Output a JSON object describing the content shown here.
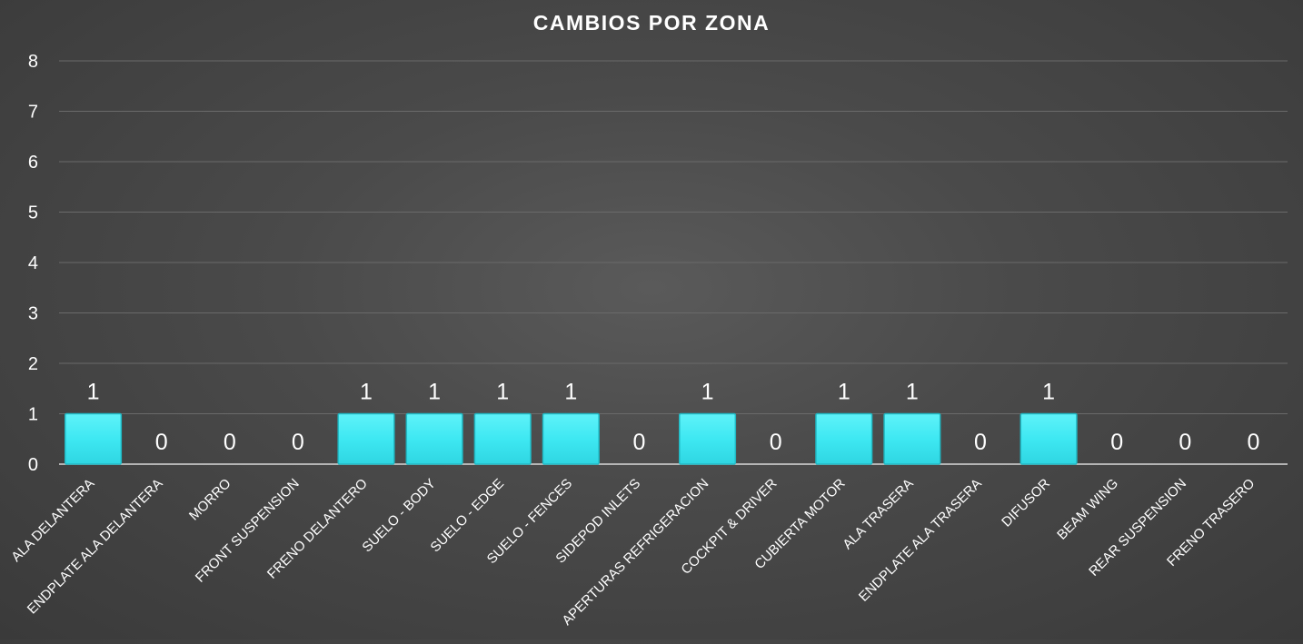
{
  "chart_data": {
    "type": "bar",
    "title": "CAMBIOS POR ZONA",
    "categories": [
      "ALA DELANTERA",
      "ENDPLATE ALA DELANTERA",
      "MORRO",
      "FRONT SUSPENSION",
      "FRENO DELANTERO",
      "SUELO - BODY",
      "SUELO  - EDGE",
      "SUELO - FENCES",
      "SIDEPOD INLETS",
      "APERTURAS REFRIGERACION",
      "COCKPIT & DRIVER",
      "CUBIERTA MOTOR",
      "ALA TRASERA",
      "ENDPLATE ALA TRASERA",
      "DIFUSOR",
      "BEAM WING",
      "REAR SUSPENSION",
      "FRENO TRASERO"
    ],
    "values": [
      1,
      0,
      0,
      0,
      1,
      1,
      1,
      1,
      0,
      1,
      0,
      1,
      1,
      0,
      1,
      0,
      0,
      0
    ],
    "yticks": [
      "0",
      "1",
      "2",
      "3",
      "4",
      "5",
      "6",
      "7",
      "8"
    ],
    "ylim": [
      0,
      8
    ],
    "xlabel": "",
    "ylabel": "",
    "grid": true,
    "legend": "none",
    "bar_color": "#3ee8f2",
    "bar_edge_color": "#21b9c4"
  }
}
